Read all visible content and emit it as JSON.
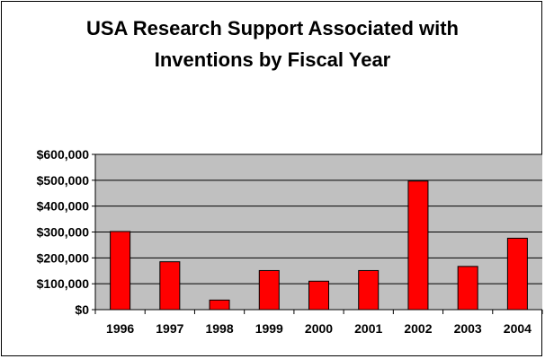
{
  "chart_data": {
    "type": "bar",
    "title_lines": [
      "USA Research Support Associated with",
      "Inventions by Fiscal Year"
    ],
    "xlabel": "",
    "ylabel": "",
    "categories": [
      "1996",
      "1997",
      "1998",
      "1999",
      "2000",
      "2001",
      "2002",
      "2003",
      "2004"
    ],
    "values": [
      302000,
      185000,
      37000,
      151000,
      110000,
      151000,
      497000,
      167000,
      276000
    ],
    "ylim": [
      0,
      600000
    ],
    "yticks": [
      0,
      100000,
      200000,
      300000,
      400000,
      500000,
      600000
    ],
    "ytick_labels": [
      "$0",
      "$100,000",
      "$200,000",
      "$300,000",
      "$400,000",
      "$500,000",
      "$600,000"
    ],
    "grid": true,
    "colors": {
      "bar": "#ff0000",
      "plot_background": "#c0c0c0",
      "grid": "#000000"
    }
  }
}
